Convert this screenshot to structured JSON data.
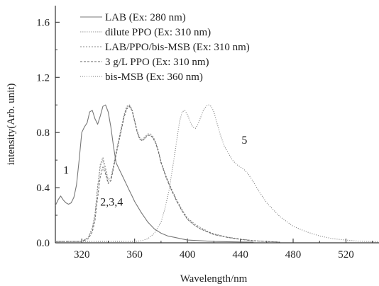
{
  "chart_data": {
    "type": "line",
    "title": "",
    "xlabel": "Wavelength/nm",
    "ylabel": "intensity(Arb. unit)",
    "xlim": [
      300,
      545
    ],
    "ylim": [
      0,
      1.72
    ],
    "xticks": [
      320,
      360,
      400,
      440,
      480,
      520
    ],
    "yticks": [
      0.0,
      0.4,
      0.8,
      1.2,
      1.6
    ],
    "xtick_labels": [
      "320",
      "360",
      "400",
      "440",
      "480",
      "520"
    ],
    "ytick_labels": [
      "0.0",
      "0.4",
      "0.8",
      "1.2",
      "1.6"
    ],
    "grid": false,
    "legend_position": "top-center",
    "series": [
      {
        "name": "LAB (Ex: 280 nm)",
        "color": "#777777",
        "dash": "none",
        "width": 1.1,
        "x": [
          300,
          302,
          304,
          306,
          308,
          310,
          312,
          314,
          316,
          318,
          320,
          322,
          324,
          326,
          328,
          330,
          332,
          334,
          336,
          338,
          340,
          342,
          344,
          346,
          348,
          350,
          352,
          354,
          356,
          358,
          360,
          365,
          370,
          375,
          380,
          385,
          390,
          395,
          400,
          410,
          420,
          430,
          440,
          450
        ],
        "y": [
          0.27,
          0.31,
          0.34,
          0.31,
          0.29,
          0.28,
          0.29,
          0.33,
          0.42,
          0.6,
          0.8,
          0.84,
          0.87,
          0.95,
          0.96,
          0.9,
          0.86,
          0.92,
          0.99,
          1.0,
          0.95,
          0.84,
          0.7,
          0.58,
          0.54,
          0.5,
          0.46,
          0.42,
          0.38,
          0.34,
          0.3,
          0.22,
          0.15,
          0.1,
          0.07,
          0.05,
          0.04,
          0.03,
          0.02,
          0.015,
          0.01,
          0.008,
          0.006,
          0.005
        ]
      },
      {
        "name": "dilute PPO (Ex: 310 nm)",
        "color": "#9a9a9a",
        "dash": "1.5,1.5",
        "width": 1.0,
        "x": [
          300,
          320,
          325,
          328,
          330,
          332,
          334,
          336,
          338,
          340,
          342,
          344,
          346,
          348,
          350,
          352,
          354,
          356,
          358,
          360,
          362,
          364,
          366,
          368,
          370,
          372,
          374,
          376,
          378,
          380,
          384,
          388,
          392,
          396,
          400,
          405,
          410,
          415,
          420,
          430,
          440,
          450,
          460,
          470
        ],
        "y": [
          0.01,
          0.01,
          0.04,
          0.1,
          0.2,
          0.4,
          0.55,
          0.6,
          0.52,
          0.44,
          0.46,
          0.55,
          0.65,
          0.74,
          0.83,
          0.92,
          0.98,
          1.0,
          0.96,
          0.88,
          0.8,
          0.75,
          0.74,
          0.76,
          0.78,
          0.78,
          0.76,
          0.72,
          0.66,
          0.58,
          0.47,
          0.38,
          0.3,
          0.23,
          0.17,
          0.13,
          0.1,
          0.08,
          0.06,
          0.04,
          0.025,
          0.015,
          0.01,
          0.005
        ]
      },
      {
        "name": "LAB/PPO/bis-MSB (Ex: 310 nm)",
        "color": "#888888",
        "dash": "2,2",
        "width": 1.0,
        "x": [
          300,
          320,
          325,
          328,
          330,
          332,
          334,
          336,
          338,
          340,
          342,
          344,
          346,
          348,
          350,
          352,
          354,
          356,
          358,
          360,
          362,
          364,
          366,
          368,
          370,
          372,
          374,
          376,
          378,
          380,
          384,
          388,
          392,
          396,
          400,
          405,
          410,
          415,
          420,
          430,
          440,
          450,
          460,
          470
        ],
        "y": [
          0.01,
          0.01,
          0.04,
          0.11,
          0.21,
          0.41,
          0.57,
          0.62,
          0.54,
          0.46,
          0.47,
          0.56,
          0.66,
          0.75,
          0.84,
          0.93,
          0.99,
          1.0,
          0.97,
          0.89,
          0.81,
          0.76,
          0.75,
          0.77,
          0.79,
          0.79,
          0.77,
          0.73,
          0.67,
          0.59,
          0.48,
          0.39,
          0.31,
          0.24,
          0.18,
          0.14,
          0.11,
          0.085,
          0.065,
          0.042,
          0.027,
          0.016,
          0.01,
          0.005
        ]
      },
      {
        "name": "3 g/L PPO (Ex: 310 nm)",
        "color": "#666666",
        "dash": "3,2",
        "width": 1.0,
        "x": [
          300,
          320,
          325,
          328,
          330,
          332,
          334,
          336,
          338,
          340,
          342,
          344,
          346,
          348,
          350,
          352,
          354,
          356,
          358,
          360,
          362,
          364,
          366,
          368,
          370,
          372,
          374,
          376,
          378,
          380,
          384,
          388,
          392,
          396,
          400,
          405,
          410,
          415,
          420,
          430,
          440,
          450,
          460,
          470
        ],
        "y": [
          0.01,
          0.01,
          0.03,
          0.08,
          0.16,
          0.33,
          0.48,
          0.55,
          0.5,
          0.43,
          0.45,
          0.54,
          0.64,
          0.73,
          0.82,
          0.91,
          0.97,
          0.99,
          0.96,
          0.88,
          0.8,
          0.75,
          0.74,
          0.76,
          0.78,
          0.78,
          0.76,
          0.72,
          0.66,
          0.58,
          0.47,
          0.38,
          0.3,
          0.23,
          0.17,
          0.13,
          0.1,
          0.08,
          0.06,
          0.04,
          0.025,
          0.015,
          0.01,
          0.005
        ]
      },
      {
        "name": "bis-MSB (Ex: 360 nm)",
        "color": "#777777",
        "dash": "1,2",
        "width": 1.1,
        "x": [
          300,
          360,
          365,
          370,
          375,
          380,
          383,
          386,
          388,
          390,
          392,
          394,
          396,
          398,
          400,
          402,
          404,
          406,
          408,
          410,
          412,
          414,
          416,
          418,
          420,
          422,
          425,
          428,
          431,
          434,
          437,
          440,
          443,
          446,
          450,
          455,
          460,
          470,
          480,
          490,
          500,
          510,
          520,
          530,
          540,
          545
        ],
        "y": [
          0.01,
          0.01,
          0.015,
          0.03,
          0.07,
          0.15,
          0.25,
          0.38,
          0.5,
          0.62,
          0.75,
          0.88,
          0.95,
          0.96,
          0.93,
          0.88,
          0.84,
          0.83,
          0.86,
          0.91,
          0.96,
          0.99,
          1.0,
          0.99,
          0.95,
          0.88,
          0.78,
          0.7,
          0.65,
          0.6,
          0.57,
          0.55,
          0.53,
          0.5,
          0.44,
          0.36,
          0.29,
          0.19,
          0.12,
          0.08,
          0.05,
          0.03,
          0.02,
          0.012,
          0.008,
          0.006
        ]
      }
    ],
    "annotations": [
      {
        "text": "1",
        "x": 306,
        "y": 0.5
      },
      {
        "text": "2,3,4",
        "x": 334,
        "y": 0.27
      },
      {
        "text": "5",
        "x": 441,
        "y": 0.72
      }
    ]
  }
}
